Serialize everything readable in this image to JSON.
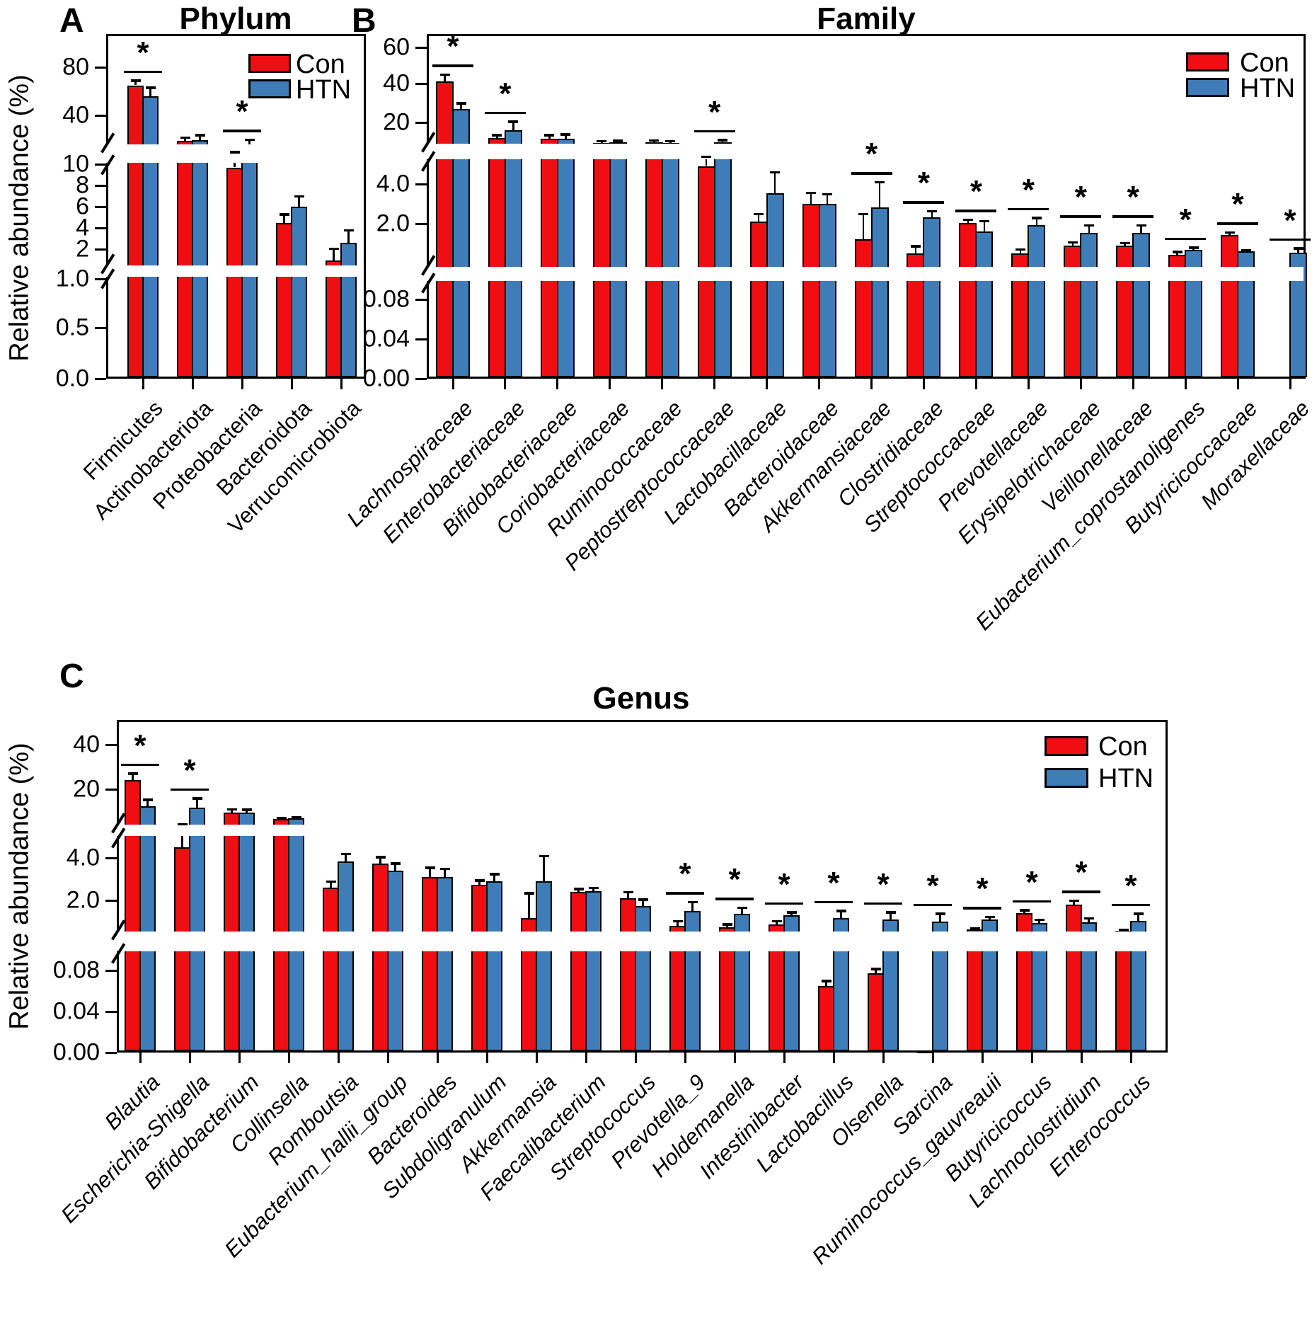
{
  "legend": {
    "con_label": "Con",
    "htn_label": "HTN"
  },
  "colors": {
    "con": "#EF0E12",
    "htn": "#3F7DB8",
    "ink": "#000000",
    "bg": "#FFFFFF"
  },
  "chart_data": [
    {
      "panel_letter": "A",
      "title": "Phylum",
      "type": "bar",
      "ylabel": "Relative abundance (%)",
      "y_axis_breaks": 2,
      "legend_position": "top-right-inside",
      "yticks": [
        {
          "label": "80",
          "value": 80
        },
        {
          "label": "40",
          "value": 40
        },
        {
          "label": "10",
          "value": 10
        },
        {
          "label": "8",
          "value": 8
        },
        {
          "label": "6",
          "value": 6
        },
        {
          "label": "4",
          "value": 4
        },
        {
          "label": "2",
          "value": 2
        },
        {
          "label": "1.0",
          "value": 1.0
        },
        {
          "label": "0.5",
          "value": 0.5
        },
        {
          "label": "0.0",
          "value": 0
        }
      ],
      "categories": [
        "Firmicutes",
        "Actinobacteriota",
        "Proteobacteria",
        "Bacteroidota",
        "Verrucomicrobiota"
      ],
      "series": [
        {
          "name": "Con",
          "values": [
            65,
            18,
            9.7,
            4.5,
            1.55
          ],
          "error_caps": [
            69,
            21,
            11,
            5.3,
            2.05
          ]
        },
        {
          "name": "HTN",
          "values": [
            56,
            18.5,
            15.2,
            6.0,
            2.6
          ],
          "error_caps": [
            63,
            23,
            19,
            7.0,
            3.8
          ]
        }
      ],
      "significant": [
        true,
        false,
        true,
        false,
        false
      ],
      "xlabel_style": "normal"
    },
    {
      "panel_letter": "B",
      "title": "Family",
      "type": "bar",
      "ylabel": null,
      "y_axis_breaks": 2,
      "legend_position": "top-right-inside",
      "yticks": [
        {
          "label": "60",
          "value": 60
        },
        {
          "label": "40",
          "value": 40
        },
        {
          "label": "20",
          "value": 20
        },
        {
          "label": "4.0",
          "value": 4
        },
        {
          "label": "2.0",
          "value": 2
        },
        {
          "label": "0.08",
          "value": 0.08
        },
        {
          "label": "0.04",
          "value": 0.04
        },
        {
          "label": "0.00",
          "value": 0
        }
      ],
      "categories": [
        "Lachnospiraceae",
        "Enterobacteriaceae",
        "Bifidobacteriaceae",
        "Coriobacteriaceae",
        "Ruminococcaceae",
        "Peptostreptococcaceae",
        "Lactobacillaceae",
        "Bacteroidaceae",
        "Akkermansiaceae",
        "Clostridiaceae",
        "Streptococcaceae",
        "Prevotellaceae",
        "Erysipelotrichaceae",
        "Veillonellaceae",
        "Eubacterium_coprostanoligenes",
        "Butyricicoccaceae",
        "Moraxellaceae"
      ],
      "series": [
        {
          "name": "Con",
          "values": [
            41,
            12,
            11.5,
            9.3,
            9.8,
            4.9,
            2.1,
            3.0,
            1.6,
            1.25,
            2.04,
            1.24,
            1.44,
            1.44,
            1.2,
            1.71,
            null
          ],
          "error_caps": [
            45,
            13.5,
            13.5,
            10.3,
            10.7,
            6.0,
            2.5,
            3.57,
            2.5,
            1.43,
            2.2,
            1.35,
            1.53,
            1.51,
            1.28,
            1.78,
            null
          ]
        },
        {
          "name": "HTN",
          "values": [
            27,
            16,
            11.5,
            9.7,
            9.5,
            9.8,
            3.55,
            3.0,
            2.82,
            2.32,
            1.8,
            1.96,
            1.77,
            1.77,
            1.33,
            1.3,
            1.26
          ],
          "error_caps": [
            30,
            20.5,
            13.8,
            10.6,
            10.4,
            11.0,
            4.6,
            3.5,
            4.1,
            2.64,
            2.14,
            2.29,
            1.96,
            1.96,
            1.39,
            1.33,
            1.37
          ]
        }
      ],
      "significant": [
        true,
        true,
        false,
        false,
        false,
        true,
        false,
        false,
        true,
        true,
        true,
        true,
        true,
        true,
        true,
        true,
        true
      ],
      "xlabel_style": "italic"
    },
    {
      "panel_letter": "C",
      "title": "Genus",
      "type": "bar",
      "ylabel": "Relative abundance (%)",
      "y_axis_breaks": 2,
      "legend_position": "top-right-inside",
      "yticks": [
        {
          "label": "40",
          "value": 40
        },
        {
          "label": "20",
          "value": 20
        },
        {
          "label": "4.0",
          "value": 4
        },
        {
          "label": "2.0",
          "value": 2
        },
        {
          "label": "0.08",
          "value": 0.08
        },
        {
          "label": "0.04",
          "value": 0.04
        },
        {
          "label": "0.00",
          "value": 0
        }
      ],
      "categories": [
        "Blautia",
        "Escherichia-Shigella",
        "Bifidobacterium",
        "Collinsella",
        "Romboutsia",
        "Eubacterium_hallii_group",
        "Bacteroides",
        "Subdoligranulum",
        "Akkermansia",
        "Faecalibacterium",
        "Streptococcus",
        "Prevotella_9",
        "Holdemanella",
        "Intestinibacter",
        "Lactobacillus",
        "Olsenella",
        "Sarcina",
        "Ruminococcus_gauvreauii",
        "Butyricicoccus",
        "Lachnoclostridium",
        "Enterococcus"
      ],
      "series": [
        {
          "name": "Con",
          "values": [
            24,
            4.5,
            11,
            8.5,
            2.6,
            3.75,
            3.1,
            2.75,
            1.4,
            2.4,
            2.1,
            1.15,
            1.1,
            1.2,
            0.065,
            0.077,
            0.002,
            1.03,
            1.57,
            1.86,
            0.97
          ],
          "error_caps": [
            27,
            6.2,
            12.4,
            9.0,
            2.9,
            4.05,
            3.55,
            2.95,
            2.35,
            2.55,
            2.4,
            1.3,
            1.2,
            1.3,
            0.07,
            0.082,
            null,
            1.06,
            1.67,
            2.0,
            1.0
          ]
        },
        {
          "name": "HTN",
          "values": [
            13.5,
            13,
            11,
            8.8,
            3.85,
            3.4,
            3.1,
            2.9,
            2.9,
            2.45,
            1.8,
            1.65,
            1.55,
            1.5,
            1.4,
            1.35,
            1.28,
            1.35,
            1.23,
            1.26,
            1.3
          ],
          "error_caps": [
            16,
            16.5,
            12.2,
            9.3,
            4.2,
            3.75,
            3.5,
            3.25,
            4.1,
            2.6,
            2.05,
            1.95,
            1.75,
            1.6,
            1.65,
            1.6,
            1.55,
            1.45,
            1.35,
            1.4,
            1.55
          ]
        }
      ],
      "significant": [
        true,
        true,
        false,
        false,
        false,
        false,
        false,
        false,
        false,
        false,
        false,
        true,
        true,
        true,
        true,
        true,
        true,
        true,
        true,
        true,
        true
      ],
      "xlabel_style": "italic"
    }
  ]
}
